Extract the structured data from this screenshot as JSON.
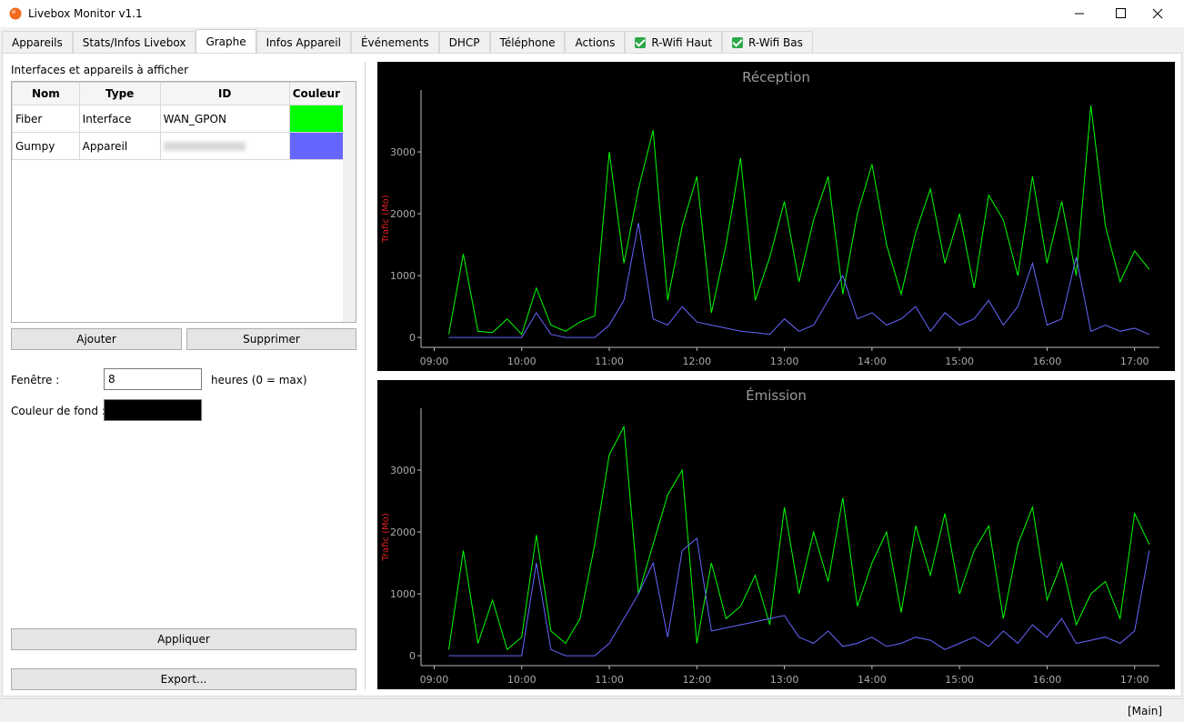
{
  "window": {
    "title": "Livebox Monitor v1.1"
  },
  "tabs": [
    {
      "label": "Appareils"
    },
    {
      "label": "Stats/Infos Livebox"
    },
    {
      "label": "Graphe",
      "active": true
    },
    {
      "label": "Infos Appareil"
    },
    {
      "label": "Événements"
    },
    {
      "label": "DHCP"
    },
    {
      "label": "Téléphone"
    },
    {
      "label": "Actions"
    },
    {
      "label": "R-Wifi Haut",
      "checked": true
    },
    {
      "label": "R-Wifi Bas",
      "checked": true
    }
  ],
  "panel": {
    "heading": "Interfaces et appareils à afficher",
    "table": {
      "columns": [
        "Nom",
        "Type",
        "ID",
        "Couleur"
      ],
      "rows": [
        {
          "name": "Fiber",
          "type": "Interface",
          "id": "WAN_GPON",
          "color": "#00ff00"
        },
        {
          "name": "Gumpy",
          "type": "Appareil",
          "color": "#6666ff"
        }
      ]
    },
    "add_button": "Ajouter",
    "remove_button": "Supprimer",
    "window_label": "Fenêtre :",
    "window_value": "8",
    "window_unit": "heures (0 = max)",
    "background_label": "Couleur de fond :",
    "background_color": "#000000",
    "apply_button": "Appliquer",
    "export_button": "Export..."
  },
  "status": "[Main]",
  "chart_data": [
    {
      "type": "line",
      "title": "Réception",
      "y_label": "Trafic (Mo)",
      "background": "#000000",
      "xlim": [
        "08:51",
        "17:17"
      ],
      "ylim": [
        -160,
        4000
      ],
      "xticks": [
        "09:00",
        "10:00",
        "11:00",
        "12:00",
        "13:00",
        "14:00",
        "15:00",
        "16:00",
        "17:00"
      ],
      "yticks": [
        0,
        1000,
        2000,
        3000
      ],
      "x": [
        "09:10",
        "09:20",
        "09:30",
        "09:40",
        "09:50",
        "10:00",
        "10:10",
        "10:20",
        "10:30",
        "10:40",
        "10:50",
        "11:00",
        "11:10",
        "11:20",
        "11:30",
        "11:40",
        "11:50",
        "12:00",
        "12:10",
        "12:20",
        "12:30",
        "12:40",
        "12:50",
        "13:00",
        "13:10",
        "13:20",
        "13:30",
        "13:40",
        "13:50",
        "14:00",
        "14:10",
        "14:20",
        "14:30",
        "14:40",
        "14:50",
        "15:00",
        "15:10",
        "15:20",
        "15:30",
        "15:40",
        "15:50",
        "16:00",
        "16:10",
        "16:20",
        "16:30",
        "16:40",
        "16:50",
        "17:00",
        "17:10"
      ],
      "series": [
        {
          "name": "Fiber",
          "color": "#00ff00",
          "values": [
            50,
            1350,
            100,
            80,
            300,
            50,
            800,
            200,
            100,
            250,
            350,
            3000,
            1200,
            2400,
            3350,
            600,
            1800,
            2600,
            400,
            1500,
            2900,
            600,
            1300,
            2200,
            900,
            1900,
            2600,
            700,
            2000,
            2800,
            1500,
            700,
            1700,
            2400,
            1200,
            2000,
            800,
            2300,
            1900,
            1000,
            2600,
            1200,
            2200,
            1000,
            3750,
            1800,
            900,
            1400,
            1100
          ]
        },
        {
          "name": "Gumpy",
          "color": "#6666ff",
          "values": [
            0,
            0,
            0,
            0,
            0,
            0,
            400,
            50,
            0,
            0,
            0,
            200,
            600,
            1850,
            300,
            200,
            500,
            250,
            200,
            150,
            100,
            80,
            50,
            300,
            100,
            200,
            600,
            1000,
            300,
            400,
            200,
            300,
            500,
            100,
            400,
            200,
            300,
            600,
            200,
            500,
            1200,
            200,
            300,
            1300,
            100,
            200,
            100,
            150,
            50
          ]
        }
      ]
    },
    {
      "type": "line",
      "title": "Émission",
      "y_label": "Trafic (Mo)",
      "background": "#000000",
      "xlim": [
        "08:51",
        "17:17"
      ],
      "ylim": [
        -160,
        4000
      ],
      "xticks": [
        "09:00",
        "10:00",
        "11:00",
        "12:00",
        "13:00",
        "14:00",
        "15:00",
        "16:00",
        "17:00"
      ],
      "yticks": [
        0,
        1000,
        2000,
        3000
      ],
      "x": [
        "09:10",
        "09:20",
        "09:30",
        "09:40",
        "09:50",
        "10:00",
        "10:10",
        "10:20",
        "10:30",
        "10:40",
        "10:50",
        "11:00",
        "11:10",
        "11:20",
        "11:30",
        "11:40",
        "11:50",
        "12:00",
        "12:10",
        "12:20",
        "12:30",
        "12:40",
        "12:50",
        "13:00",
        "13:10",
        "13:20",
        "13:30",
        "13:40",
        "13:50",
        "14:00",
        "14:10",
        "14:20",
        "14:30",
        "14:40",
        "14:50",
        "15:00",
        "15:10",
        "15:20",
        "15:30",
        "15:40",
        "15:50",
        "16:00",
        "16:10",
        "16:20",
        "16:30",
        "16:40",
        "16:50",
        "17:00",
        "17:10"
      ],
      "series": [
        {
          "name": "Fiber",
          "color": "#00ff00",
          "values": [
            100,
            1700,
            200,
            900,
            100,
            300,
            1950,
            400,
            200,
            600,
            1800,
            3250,
            3700,
            1000,
            1800,
            2600,
            3000,
            200,
            1500,
            600,
            800,
            1300,
            500,
            2400,
            1000,
            2000,
            1200,
            2550,
            800,
            1500,
            2000,
            700,
            2100,
            1300,
            2300,
            1000,
            1700,
            2100,
            600,
            1800,
            2400,
            900,
            1500,
            500,
            1000,
            1200,
            600,
            2300,
            1800
          ]
        },
        {
          "name": "Gumpy",
          "color": "#6666ff",
          "values": [
            0,
            0,
            0,
            0,
            0,
            0,
            1500,
            100,
            0,
            0,
            0,
            200,
            600,
            1000,
            1500,
            300,
            1700,
            1900,
            400,
            450,
            500,
            550,
            600,
            650,
            300,
            200,
            400,
            150,
            200,
            300,
            150,
            200,
            300,
            250,
            100,
            200,
            300,
            150,
            400,
            200,
            500,
            300,
            600,
            200,
            250,
            300,
            200,
            400,
            1700
          ]
        }
      ]
    }
  ]
}
